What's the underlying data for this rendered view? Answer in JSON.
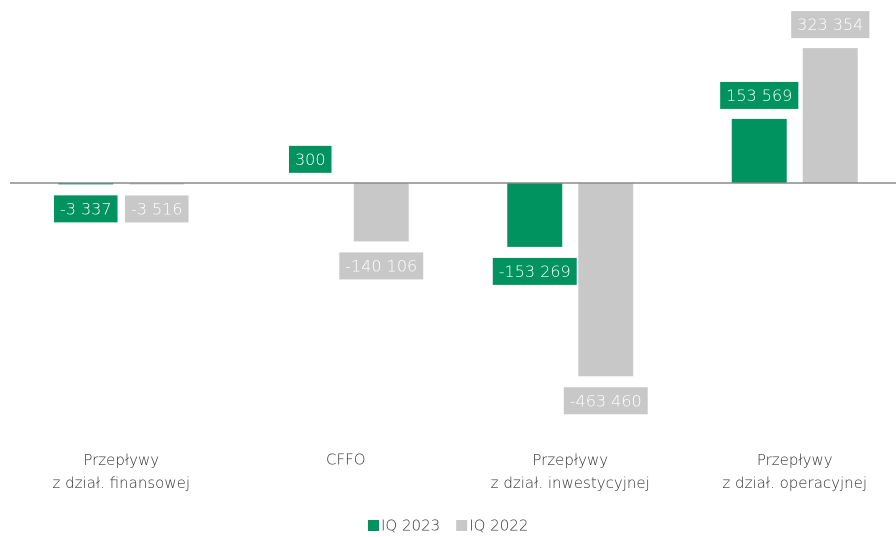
{
  "chart_data": {
    "type": "bar",
    "categories": [
      "Przepływy\nz dział. finansowej",
      "CFFO",
      "Przepływy\nz dział. inwestycyjnej",
      "Przepływy\nz dział. operacyjnej"
    ],
    "series": [
      {
        "name": "IQ 2023",
        "color": "#00935f",
        "values": [
          -3337,
          300,
          -153269,
          153569
        ],
        "value_labels": [
          "-3 337",
          "300",
          "-153 269",
          "153 569"
        ]
      },
      {
        "name": "IQ 2022",
        "color": "#c8c8c8",
        "values": [
          -3516,
          -140106,
          -463460,
          323354
        ],
        "value_labels": [
          "-3 516",
          "-140 106",
          "-463 460",
          "323 354"
        ]
      }
    ],
    "ylim": [
      -500000,
      350000
    ],
    "legend": "bottom"
  }
}
